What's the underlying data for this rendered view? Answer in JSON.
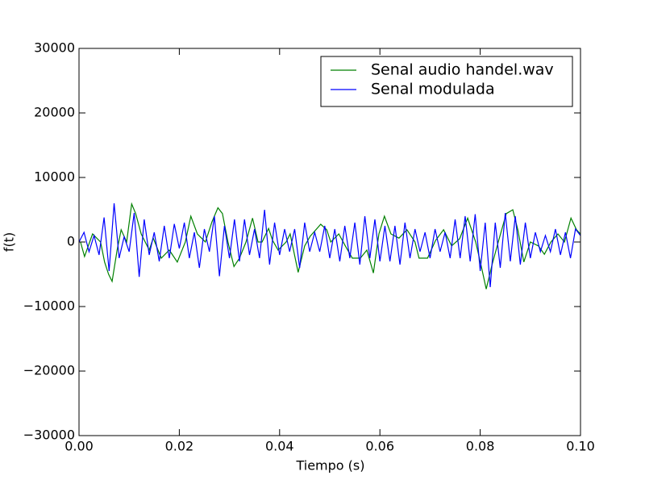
{
  "chart_data": {
    "type": "line",
    "x_label": "Tiempo (s)",
    "y_label": "f(t)",
    "xlim": [
      0,
      0.1
    ],
    "ylim": [
      -30000,
      30000
    ],
    "xticks": [
      {
        "value": 0,
        "label": "0.00"
      },
      0.02,
      0.04,
      0.06,
      0.08,
      {
        "value": 0.1,
        "label": "0.10"
      }
    ],
    "yticks": [
      {
        "value": -30000,
        "label": "−30000"
      },
      {
        "value": -20000,
        "label": "−20000"
      },
      {
        "value": -10000,
        "label": "−10000"
      },
      0,
      10000,
      20000,
      30000
    ],
    "grid": false,
    "legend": "upper right",
    "series": [
      {
        "name": "Senal audio handel.wav",
        "color": "#008000",
        "x": [
          0.0003,
          0.0011,
          0.0027,
          0.0043,
          0.0051,
          0.0059,
          0.0066,
          0.0076,
          0.0084,
          0.0095,
          0.0105,
          0.0113,
          0.0124,
          0.0132,
          0.014,
          0.0148,
          0.0164,
          0.018,
          0.0196,
          0.0212,
          0.0223,
          0.0236,
          0.0252,
          0.0265,
          0.0277,
          0.0286,
          0.0297,
          0.0309,
          0.032,
          0.0333,
          0.0346,
          0.0357,
          0.0365,
          0.0378,
          0.0386,
          0.0397,
          0.0413,
          0.0421,
          0.0437,
          0.045,
          0.0461,
          0.0482,
          0.0494,
          0.0502,
          0.0518,
          0.0531,
          0.0545,
          0.0561,
          0.0574,
          0.0587,
          0.0598,
          0.0609,
          0.0622,
          0.0638,
          0.0654,
          0.067,
          0.0678,
          0.0695,
          0.0711,
          0.0727,
          0.0743,
          0.0759,
          0.0775,
          0.0791,
          0.0802,
          0.0812,
          0.0823,
          0.0836,
          0.0852,
          0.0865,
          0.0875,
          0.0887,
          0.09,
          0.0916,
          0.0928,
          0.0941,
          0.0955,
          0.0968,
          0.0981,
          0.0992,
          0.1
        ],
        "values": [
          0,
          -2250,
          1250,
          0,
          -3100,
          -5000,
          -6100,
          -1250,
          1900,
          0,
          5900,
          4400,
          1250,
          0,
          -1250,
          600,
          -2500,
          -1250,
          -3100,
          0,
          4000,
          1250,
          0,
          3100,
          5300,
          4400,
          0,
          -3800,
          -2500,
          0,
          3700,
          0,
          0,
          2100,
          250,
          -1250,
          0,
          1250,
          -4700,
          -600,
          900,
          2750,
          1900,
          0,
          1250,
          -600,
          -2500,
          -2500,
          -1250,
          -4800,
          1250,
          4000,
          1250,
          600,
          1900,
          0,
          -2500,
          -2500,
          250,
          1900,
          -600,
          500,
          3700,
          0,
          -3700,
          -7300,
          -3700,
          0,
          4400,
          5000,
          1900,
          -3100,
          0,
          -600,
          -1900,
          0,
          1250,
          0,
          3700,
          1900,
          1250
        ]
      },
      {
        "name": "Senal modulada",
        "color": "#0000ff",
        "x": [
          0,
          0.001,
          0.002,
          0.003,
          0.004,
          0.005,
          0.006,
          0.007,
          0.008,
          0.009,
          0.01,
          0.011,
          0.012,
          0.013,
          0.014,
          0.015,
          0.016,
          0.017,
          0.018,
          0.019,
          0.02,
          0.021,
          0.022,
          0.023,
          0.024,
          0.025,
          0.026,
          0.027,
          0.028,
          0.029,
          0.03,
          0.031,
          0.032,
          0.033,
          0.034,
          0.035,
          0.036,
          0.037,
          0.038,
          0.039,
          0.04,
          0.041,
          0.042,
          0.043,
          0.044,
          0.045,
          0.046,
          0.047,
          0.048,
          0.049,
          0.05,
          0.051,
          0.052,
          0.053,
          0.054,
          0.055,
          0.056,
          0.057,
          0.058,
          0.059,
          0.06,
          0.061,
          0.062,
          0.063,
          0.064,
          0.065,
          0.066,
          0.067,
          0.068,
          0.069,
          0.07,
          0.071,
          0.072,
          0.073,
          0.074,
          0.075,
          0.076,
          0.077,
          0.078,
          0.079,
          0.08,
          0.081,
          0.082,
          0.083,
          0.084,
          0.085,
          0.086,
          0.087,
          0.088,
          0.089,
          0.09,
          0.091,
          0.092,
          0.093,
          0.094,
          0.095,
          0.096,
          0.097,
          0.098,
          0.099,
          0.1
        ],
        "values": [
          0,
          1500,
          -1500,
          1000,
          -2000,
          3800,
          -4500,
          6000,
          -2500,
          800,
          -1500,
          4500,
          -5400,
          3500,
          -2000,
          1500,
          -3000,
          2500,
          -2500,
          2800,
          -1000,
          3000,
          -2500,
          1500,
          -4000,
          2000,
          -1500,
          4000,
          -5300,
          2500,
          -2500,
          3500,
          -3000,
          3500,
          -2000,
          2000,
          -2500,
          5000,
          -3500,
          3000,
          -2000,
          2000,
          -1500,
          2000,
          -4000,
          3000,
          -1500,
          1500,
          -1500,
          2500,
          -2500,
          2000,
          -3000,
          2500,
          -2500,
          3000,
          -3500,
          4000,
          -2500,
          3500,
          -3000,
          2500,
          -3000,
          2500,
          -3500,
          3000,
          -2500,
          2000,
          -1500,
          1500,
          -2500,
          2000,
          -1500,
          1500,
          -2500,
          3500,
          -2500,
          4000,
          -3000,
          4300,
          -4500,
          3000,
          -7000,
          3000,
          -4000,
          4500,
          -3000,
          4000,
          -3500,
          3000,
          -2500,
          1500,
          -1500,
          1000,
          -1500,
          2000,
          -2000,
          1500,
          -2500,
          2000,
          1000
        ]
      }
    ]
  }
}
